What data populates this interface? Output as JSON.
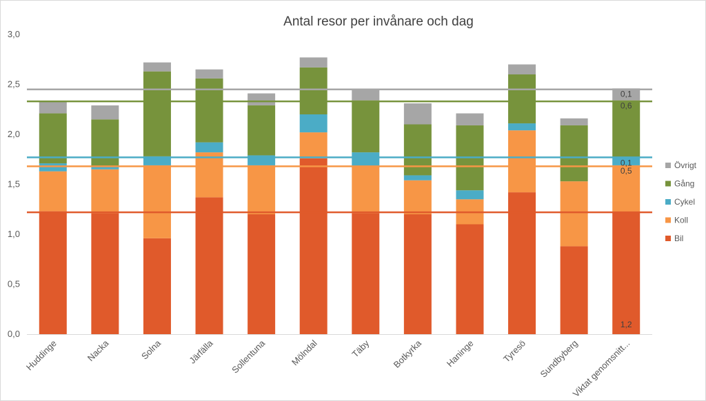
{
  "chart_data": {
    "type": "bar",
    "stacked": true,
    "title": "Antal resor per invånare och dag",
    "xlabel": "",
    "ylabel": "",
    "ylim": [
      0,
      3.0
    ],
    "yticks": [
      "0,0",
      "0,5",
      "1,0",
      "1,5",
      "2,0",
      "2,5",
      "3,0"
    ],
    "grid": false,
    "legend_position": "right",
    "categories": [
      "Huddinge",
      "Nacka",
      "Solna",
      "Järfälla",
      "Sollentuna",
      "Mölndal",
      "Täby",
      "Botkyrka",
      "Haninge",
      "Tyresö",
      "Sundbyberg",
      "Viktat genomsnitt..."
    ],
    "series": [
      {
        "name": "Bil",
        "color": "#e05a2b",
        "values": [
          1.23,
          1.21,
          0.96,
          1.37,
          1.2,
          1.76,
          1.21,
          1.2,
          1.1,
          1.42,
          0.88,
          1.22
        ]
      },
      {
        "name": "Koll",
        "color": "#f79646",
        "values": [
          0.4,
          0.44,
          0.73,
          0.45,
          0.49,
          0.26,
          0.47,
          0.34,
          0.25,
          0.62,
          0.65,
          0.47
        ]
      },
      {
        "name": "Cykel",
        "color": "#4bacc6",
        "values": [
          0.08,
          0.03,
          0.09,
          0.1,
          0.1,
          0.18,
          0.14,
          0.05,
          0.09,
          0.07,
          0.0,
          0.08
        ]
      },
      {
        "name": "Gång",
        "color": "#77933c",
        "values": [
          0.5,
          0.47,
          0.85,
          0.64,
          0.5,
          0.47,
          0.52,
          0.51,
          0.65,
          0.49,
          0.56,
          0.57
        ]
      },
      {
        "name": "Övrigt",
        "color": "#a6a6a6",
        "values": [
          0.12,
          0.14,
          0.09,
          0.09,
          0.12,
          0.1,
          0.11,
          0.21,
          0.12,
          0.1,
          0.07,
          0.12
        ]
      }
    ],
    "legend_order": [
      "Övrigt",
      "Gång",
      "Cykel",
      "Koll",
      "Bil"
    ],
    "data_labels": [
      {
        "category": "Viktat genomsnitt...",
        "series": "Övrigt",
        "text": "0,1"
      },
      {
        "category": "Viktat genomsnitt...",
        "series": "Gång",
        "text": "0,6"
      },
      {
        "category": "Viktat genomsnitt...",
        "series": "Cykel",
        "text": "0,1"
      },
      {
        "category": "Viktat genomsnitt...",
        "series": "Koll",
        "text": "0,5"
      },
      {
        "category": "Viktat genomsnitt...",
        "series": "Bil",
        "text": "1,2"
      }
    ],
    "reference_lines": [
      {
        "series": "Övrigt",
        "value": 2.45,
        "color": "#a6a6a6"
      },
      {
        "series": "Gång",
        "value": 2.33,
        "color": "#77933c"
      },
      {
        "series": "Cykel",
        "value": 1.77,
        "color": "#4bacc6"
      },
      {
        "series": "Koll",
        "value": 1.68,
        "color": "#f79646"
      },
      {
        "series": "Bil",
        "value": 1.22,
        "color": "#e05a2b"
      }
    ]
  }
}
